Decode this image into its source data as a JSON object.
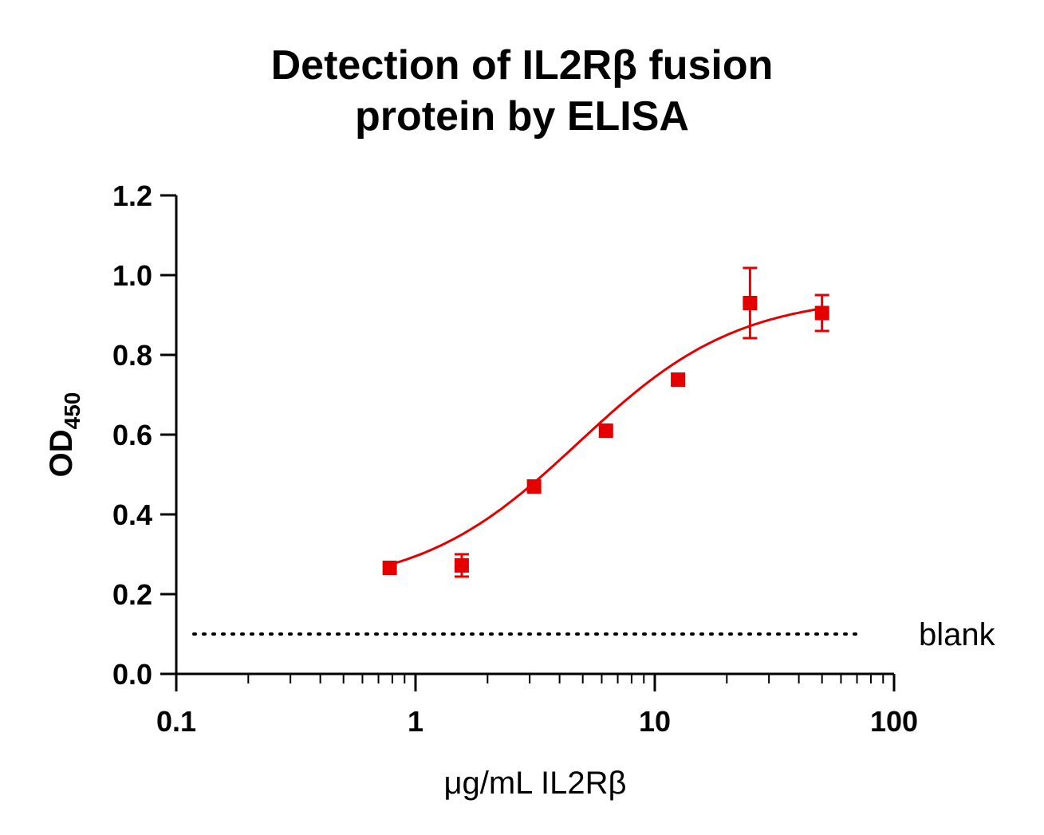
{
  "chart_data": {
    "type": "scatter",
    "title_line1": "Detection of IL2Rβ fusion",
    "title_line2": "protein by ELISA",
    "xlabel": "μg/mL IL2Rβ",
    "ylabel_main": "OD",
    "ylabel_sub": "450",
    "x_scale": "log",
    "xlim": [
      0.1,
      100
    ],
    "ylim": [
      0.0,
      1.2
    ],
    "x_ticks": [
      0.1,
      1,
      10,
      100
    ],
    "x_tick_labels": [
      "0.1",
      "1",
      "10",
      "100"
    ],
    "y_ticks": [
      0.0,
      0.2,
      0.4,
      0.6,
      0.8,
      1.0,
      1.2
    ],
    "y_tick_labels": [
      "0.0",
      "0.2",
      "0.4",
      "0.6",
      "0.8",
      "1.0",
      "1.2"
    ],
    "grid": false,
    "series": [
      {
        "color": "#e50000",
        "marker": "square",
        "points": [
          {
            "x": 0.78,
            "y": 0.266,
            "err": 0.0
          },
          {
            "x": 1.56,
            "y": 0.272,
            "err": 0.028
          },
          {
            "x": 3.13,
            "y": 0.47,
            "err": 0.0
          },
          {
            "x": 6.25,
            "y": 0.61,
            "err": 0.0
          },
          {
            "x": 12.5,
            "y": 0.738,
            "err": 0.0
          },
          {
            "x": 25,
            "y": 0.93,
            "err": 0.088
          },
          {
            "x": 50,
            "y": 0.905,
            "err": 0.045
          }
        ],
        "fit": {
          "type": "4PL",
          "bottom": 0.21,
          "top": 0.95,
          "ec50": 4.8,
          "hill": 1.3,
          "x_range": [
            0.78,
            50
          ]
        }
      }
    ],
    "reference_line": {
      "y": 0.1,
      "label": "blank",
      "style": "dotted",
      "x_range": [
        0.1,
        80
      ]
    }
  }
}
